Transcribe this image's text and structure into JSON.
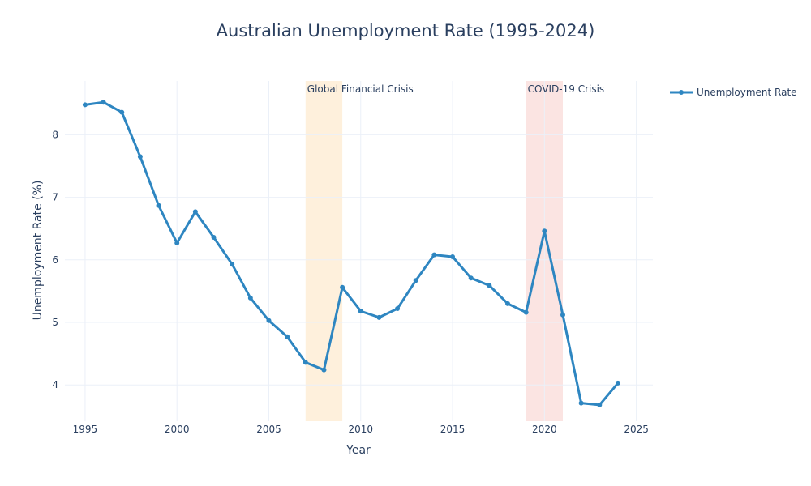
{
  "chart_data": {
    "type": "line",
    "title": "Australian Unemployment Rate (1995-2024)",
    "xlabel": "Year",
    "ylabel": "Unemployment Rate (%)",
    "xlim": [
      1993.9,
      2025.9
    ],
    "ylim": [
      3.42,
      8.86
    ],
    "x_ticks": [
      1995,
      2000,
      2005,
      2010,
      2015,
      2020,
      2025
    ],
    "y_ticks": [
      4,
      5,
      6,
      7,
      8
    ],
    "grid": true,
    "legend_position": "top-right",
    "series": [
      {
        "name": "Unemployment Rate",
        "color": "#2e86c1",
        "x": [
          1995,
          1996,
          1997,
          1998,
          1999,
          2000,
          2001,
          2002,
          2003,
          2004,
          2005,
          2006,
          2007,
          2008,
          2009,
          2010,
          2011,
          2012,
          2013,
          2014,
          2015,
          2016,
          2017,
          2018,
          2019,
          2020,
          2021,
          2022,
          2023,
          2024
        ],
        "y": [
          8.48,
          8.52,
          8.36,
          7.65,
          6.87,
          6.27,
          6.77,
          6.36,
          5.93,
          5.39,
          5.03,
          4.77,
          4.36,
          4.24,
          5.56,
          5.18,
          5.08,
          5.22,
          5.67,
          6.08,
          6.05,
          5.71,
          5.59,
          5.3,
          5.16,
          6.46,
          5.12,
          3.71,
          3.68,
          4.03
        ]
      }
    ],
    "annotations": [
      {
        "label": "Global Financial Crisis",
        "x0": 2007,
        "x1": 2009,
        "color": "#fdebd0"
      },
      {
        "label": "COVID-19 Crisis",
        "x0": 2019,
        "x1": 2021,
        "color": "#fadbd8"
      }
    ]
  }
}
